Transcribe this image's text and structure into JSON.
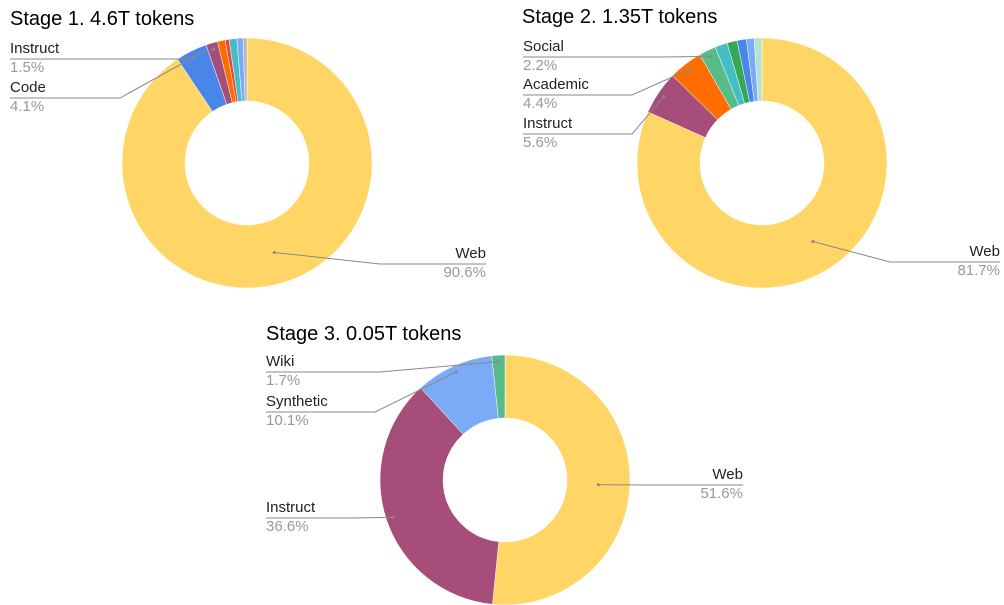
{
  "chart_data": [
    {
      "type": "donut",
      "title": "Stage 1. 4.6T tokens",
      "categories": [
        "Web",
        "Code",
        "Instruct",
        null,
        null,
        null,
        null,
        null
      ],
      "values": [
        90.6,
        4.1,
        1.5,
        1.0,
        0.5,
        1.0,
        0.8,
        0.5
      ],
      "value_labels": [
        "90.6%",
        "4.1%",
        "1.5%",
        null,
        null,
        null,
        null,
        null
      ],
      "colors": [
        "#ffd666",
        "#4a86e8",
        "#a64d79",
        "#ff6d01",
        "#e8453c",
        "#46bdc6",
        "#7baaf7",
        "#b7b7b7"
      ]
    },
    {
      "type": "donut",
      "title": "Stage 2. 1.35T tokens",
      "categories": [
        "Web",
        "Instruct",
        "Academic",
        "Social",
        null,
        null,
        null,
        null,
        null
      ],
      "values": [
        81.7,
        5.6,
        4.4,
        2.2,
        1.6,
        1.3,
        1.2,
        1.0,
        1.0
      ],
      "value_labels": [
        "81.7%",
        "5.6%",
        "4.4%",
        "2.2%",
        null,
        null,
        null,
        null,
        null
      ],
      "colors": [
        "#ffd666",
        "#a64d79",
        "#ff6d01",
        "#57bb8a",
        "#46bdc6",
        "#34a853",
        "#4a86e8",
        "#7baaf7",
        "#b7e1cd"
      ]
    },
    {
      "type": "donut",
      "title": "Stage 3. 0.05T tokens",
      "categories": [
        "Web",
        "Instruct",
        "Synthetic",
        "Wiki"
      ],
      "values": [
        51.6,
        36.6,
        10.1,
        1.7
      ],
      "value_labels": [
        "51.6%",
        "36.6%",
        "10.1%",
        "1.7%"
      ],
      "colors": [
        "#ffd666",
        "#a64d79",
        "#7baaf7",
        "#57bb8a"
      ]
    }
  ]
}
